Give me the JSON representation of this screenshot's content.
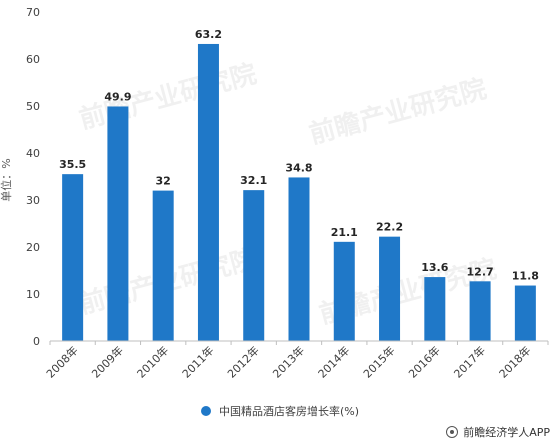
{
  "chart_data": {
    "type": "bar",
    "categories": [
      "2008年",
      "2009年",
      "2010年",
      "2011年",
      "2012年",
      "2013年",
      "2014年",
      "2015年",
      "2016年",
      "2017年",
      "2018年"
    ],
    "series": [
      {
        "name": "中国精品酒店客房增长率(%)",
        "values": [
          35.5,
          49.9,
          32,
          63.2,
          32.1,
          34.8,
          21.1,
          22.2,
          13.6,
          12.7,
          11.8
        ],
        "value_labels": [
          "35.5",
          "49.9",
          "32",
          "63.2",
          "32.1",
          "34.8",
          "21.1",
          "22.2",
          "13.6",
          "12.7",
          "11.8"
        ],
        "color": "#1f78c8"
      }
    ],
    "ylabel": "单位：%",
    "ylim": [
      0,
      70
    ],
    "yticks": [
      0,
      10,
      20,
      30,
      40,
      50,
      60,
      70
    ],
    "grid": false,
    "legend_position": "bottom-center"
  },
  "watermark": "前瞻产业研究院",
  "source": "前瞻经济学人APP",
  "colors": {
    "bar": "#1f78c8",
    "axis": "#bfbfbf",
    "text": "#404040"
  }
}
